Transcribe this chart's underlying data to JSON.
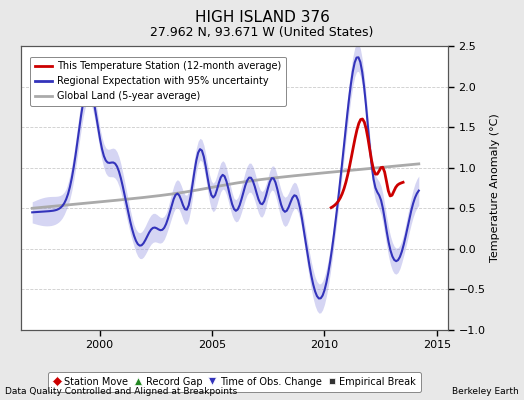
{
  "title": "HIGH ISLAND 376",
  "subtitle": "27.962 N, 93.671 W (United States)",
  "ylabel": "Temperature Anomaly (°C)",
  "xlabel_left": "Data Quality Controlled and Aligned at Breakpoints",
  "xlabel_right": "Berkeley Earth",
  "xlim": [
    1996.5,
    2015.5
  ],
  "ylim": [
    -1.0,
    2.5
  ],
  "yticks": [
    -1,
    -0.5,
    0,
    0.5,
    1,
    1.5,
    2,
    2.5
  ],
  "xticks": [
    2000,
    2005,
    2010,
    2015
  ],
  "bg_color": "#e8e8e8",
  "plot_bg_color": "#ffffff",
  "grid_color": "#cccccc",
  "regional_color": "#3333bb",
  "regional_fill_color": "#8888dd",
  "regional_fill_alpha": 0.35,
  "global_land_color": "#aaaaaa",
  "station_color": "#cc0000",
  "legend1_labels": [
    "This Temperature Station (12-month average)",
    "Regional Expectation with 95% uncertainty",
    "Global Land (5-year average)"
  ],
  "legend2_labels": [
    "Station Move",
    "Record Gap",
    "Time of Obs. Change",
    "Empirical Break"
  ],
  "legend2_markers": [
    "D",
    "^",
    "v",
    "s"
  ],
  "legend2_colors": [
    "#cc0000",
    "#228822",
    "#3333bb",
    "#333333"
  ]
}
